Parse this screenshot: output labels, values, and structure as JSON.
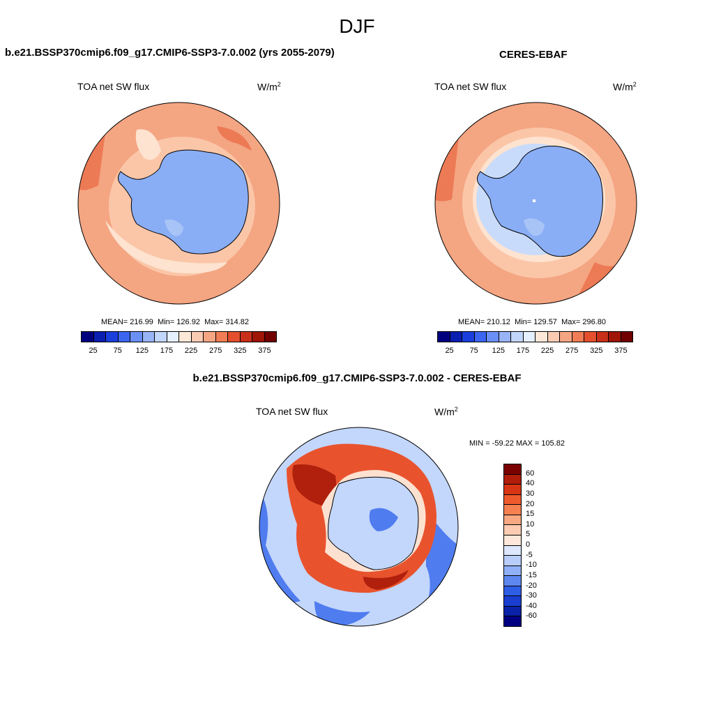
{
  "main_title": "DJF",
  "panel_left": {
    "title": "b.e21.BSSP370cmip6.f09_g17.CMIP6-SSP3-7.0.002 (yrs 2055-2079)",
    "variable": "TOA net SW flux",
    "unit_base": "W/m",
    "unit_exp": "2",
    "mean_label": "MEAN=",
    "mean": "216.99",
    "min_label": "Min=",
    "min": "126.92",
    "max_label": "Max=",
    "max": "314.82"
  },
  "panel_right": {
    "title": "CERES-EBAF",
    "variable": "TOA net SW flux",
    "unit_base": "W/m",
    "unit_exp": "2",
    "mean_label": "MEAN=",
    "mean": "210.12",
    "min_label": "Min=",
    "min": "129.57",
    "max_label": "Max=",
    "max": "296.80"
  },
  "panel_diff": {
    "title": "b.e21.BSSP370cmip6.f09_g17.CMIP6-SSP3-7.0.002 - CERES-EBAF",
    "variable": "TOA net SW flux",
    "unit_base": "W/m",
    "unit_exp": "2",
    "minmax": "MIN = -59.22 MAX = 105.82"
  },
  "abs_colorbar": {
    "colors": [
      "#00007f",
      "#0a1fb0",
      "#1a3fdd",
      "#3d66f0",
      "#6a8ff5",
      "#98b4f7",
      "#c2d5fa",
      "#e6efff",
      "#fde8d8",
      "#fbcab3",
      "#f6a583",
      "#f07d55",
      "#e4502d",
      "#c8301a",
      "#9f1508",
      "#700000"
    ],
    "ticks": [
      "25",
      "75",
      "125",
      "175",
      "225",
      "275",
      "325",
      "375"
    ]
  },
  "diff_colorbar": {
    "colors": [
      "#7a0000",
      "#b01d0a",
      "#d83514",
      "#ee5a2c",
      "#f68050",
      "#f8a882",
      "#fbcbb2",
      "#fde8da",
      "#dde8ff",
      "#b9cdfb",
      "#8fb0f7",
      "#5e88f0",
      "#2f5ee6",
      "#1a3fd0",
      "#0a22a8",
      "#000080"
    ],
    "ticks": [
      "60",
      "40",
      "30",
      "20",
      "15",
      "10",
      "5",
      "0",
      "-5",
      "-10",
      "-15",
      "-20",
      "-30",
      "-40",
      "-60"
    ]
  },
  "map_colors": {
    "ocean_high": "#f4a582",
    "ocean_mid": "#fbc6a8",
    "ocean_low": "#fde3d0",
    "ocean_edge": "#ec7a55",
    "land": "#8aaef5",
    "land_light": "#a8c4f7",
    "sea_ice": "#c9dbfb",
    "diff_red": "#e8532e",
    "diff_darkred": "#b0200c",
    "diff_blue": "#4f7cef",
    "diff_lightblue": "#c3d6fb",
    "diff_pale": "#fde1d0"
  }
}
